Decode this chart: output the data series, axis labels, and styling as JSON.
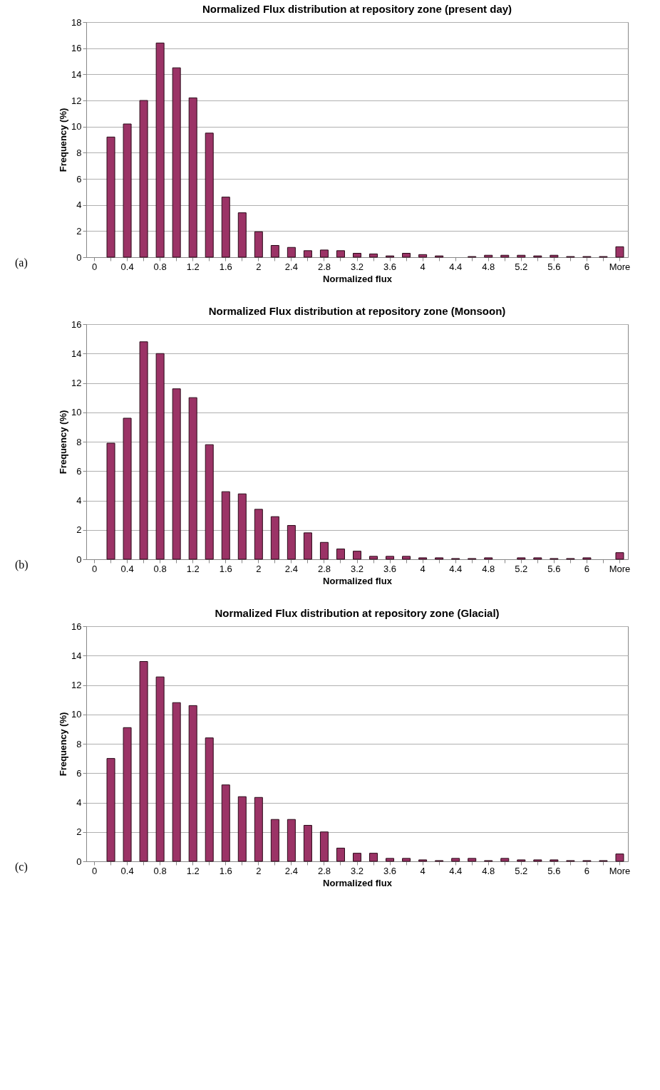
{
  "chart_data": [
    {
      "type": "bar",
      "title": "Normalized Flux distribution at repository zone (present day)",
      "xlabel": "Normalized flux",
      "ylabel": "Frequency (%)",
      "annotations": [
        "(a)"
      ],
      "categories": [
        "0",
        null,
        "0.4",
        null,
        "0.8",
        null,
        "1.2",
        null,
        "1.6",
        null,
        "2",
        null,
        "2.4",
        null,
        "2.8",
        null,
        "3.2",
        null,
        "3.6",
        null,
        "4",
        null,
        "4.4",
        null,
        "4.8",
        null,
        "5.2",
        null,
        "5.6",
        null,
        "6",
        null,
        "More"
      ],
      "values": [
        0,
        9.2,
        10.2,
        12,
        16.4,
        14.5,
        12.2,
        9.5,
        4.6,
        3.4,
        1.95,
        0.9,
        0.75,
        0.5,
        0.55,
        0.5,
        0.3,
        0.25,
        0.1,
        0.3,
        0.2,
        0.1,
        0,
        0.05,
        0.15,
        0.15,
        0.15,
        0.1,
        0.15,
        0.05,
        0.05,
        0.05,
        0.8
      ],
      "color": "#9b3366",
      "ylim": [
        0,
        18
      ],
      "yticks": [
        0,
        2,
        4,
        6,
        8,
        10,
        12,
        14,
        16,
        18
      ],
      "grid": "y"
    },
    {
      "type": "bar",
      "title": "Normalized Flux distribution at repository zone (Monsoon)",
      "xlabel": "Normalized flux",
      "ylabel": "Frequency (%)",
      "annotations": [
        "(b)"
      ],
      "categories": [
        "0",
        null,
        "0.4",
        null,
        "0.8",
        null,
        "1.2",
        null,
        "1.6",
        null,
        "2",
        null,
        "2.4",
        null,
        "2.8",
        null,
        "3.2",
        null,
        "3.6",
        null,
        "4",
        null,
        "4.4",
        null,
        "4.8",
        null,
        "5.2",
        null,
        "5.6",
        null,
        "6",
        null,
        "More"
      ],
      "values": [
        0,
        7.9,
        9.6,
        14.8,
        14.0,
        11.6,
        11.0,
        7.8,
        4.6,
        4.45,
        3.4,
        2.9,
        2.3,
        1.8,
        1.15,
        0.7,
        0.55,
        0.2,
        0.2,
        0.2,
        0.1,
        0.1,
        0.05,
        0.05,
        0.1,
        0,
        0.1,
        0.1,
        0.05,
        0.05,
        0.1,
        0,
        0.45
      ],
      "color": "#9b3366",
      "ylim": [
        0,
        16
      ],
      "yticks": [
        0,
        2,
        4,
        6,
        8,
        10,
        12,
        14,
        16
      ],
      "grid": "y"
    },
    {
      "type": "bar",
      "title": "Normalized Flux distribution at repository zone (Glacial)",
      "xlabel": "Normalized flux",
      "ylabel": "Frequency (%)",
      "annotations": [
        "(c)"
      ],
      "categories": [
        "0",
        null,
        "0.4",
        null,
        "0.8",
        null,
        "1.2",
        null,
        "1.6",
        null,
        "2",
        null,
        "2.4",
        null,
        "2.8",
        null,
        "3.2",
        null,
        "3.6",
        null,
        "4",
        null,
        "4.4",
        null,
        "4.8",
        null,
        "5.2",
        null,
        "5.6",
        null,
        "6",
        null,
        "More"
      ],
      "values": [
        0,
        7.0,
        9.1,
        13.6,
        12.55,
        10.8,
        10.6,
        8.4,
        5.2,
        4.4,
        4.35,
        2.85,
        2.85,
        2.45,
        2.0,
        0.9,
        0.55,
        0.55,
        0.2,
        0.2,
        0.1,
        0.05,
        0.2,
        0.2,
        0.05,
        0.2,
        0.1,
        0.1,
        0.1,
        0.05,
        0.05,
        0.05,
        0.5
      ],
      "color": "#9b3366",
      "ylim": [
        0,
        16
      ],
      "yticks": [
        0,
        2,
        4,
        6,
        8,
        10,
        12,
        14,
        16
      ],
      "grid": "y"
    }
  ]
}
